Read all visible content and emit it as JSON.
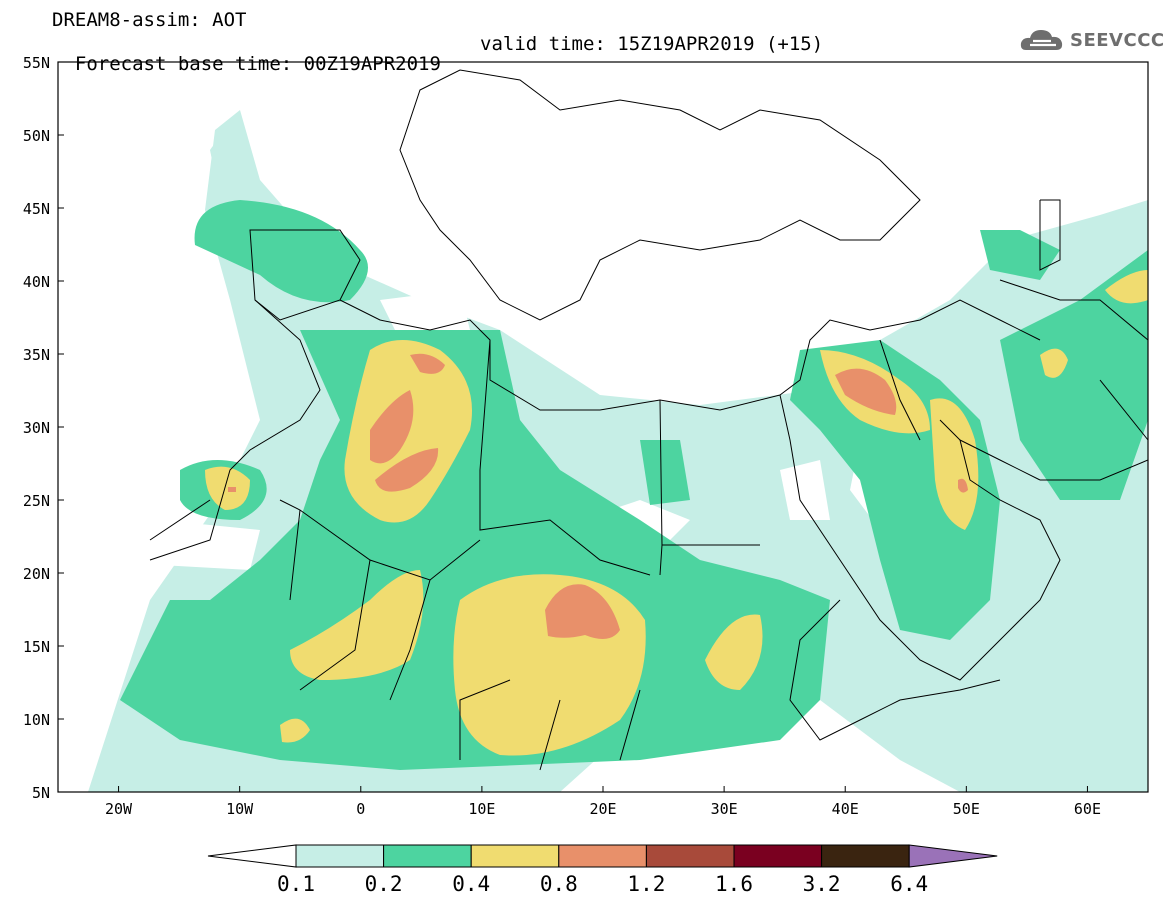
{
  "header": {
    "model_title": "DREAM8-assim: AOT",
    "base_time": "Forecast base time: 00Z19APR2019",
    "valid_time": "valid time: 15Z19APR2019 (+15)",
    "logo_text": "SEEVCCC",
    "logo_icon": "cloud-icon"
  },
  "map": {
    "lat_labels": [
      "55N",
      "50N",
      "45N",
      "40N",
      "35N",
      "30N",
      "25N",
      "20N",
      "15N",
      "10N",
      "5N"
    ],
    "lon_labels": [
      "20W",
      "10W",
      "0",
      "10E",
      "20E",
      "30E",
      "40E",
      "50E",
      "60E"
    ],
    "lat_range": [
      5,
      55
    ],
    "lon_range": [
      -25,
      65
    ]
  },
  "colorbar": {
    "labels": [
      "0.1",
      "0.2",
      "0.4",
      "0.8",
      "1.2",
      "1.6",
      "3.2",
      "6.4"
    ],
    "colors": [
      "#ffffff",
      "#c6eee6",
      "#4dd4a0",
      "#f0dc70",
      "#e8906a",
      "#a84a3a",
      "#7a0020",
      "#3a2410",
      "#9a72b8"
    ]
  },
  "colors": {
    "aot_0_1": "#c6eee6",
    "aot_0_2": "#4dd4a0",
    "aot_0_4": "#f0dc70",
    "aot_0_8": "#e8906a",
    "land_border": "#000000",
    "logo": "#6e6e6e"
  }
}
